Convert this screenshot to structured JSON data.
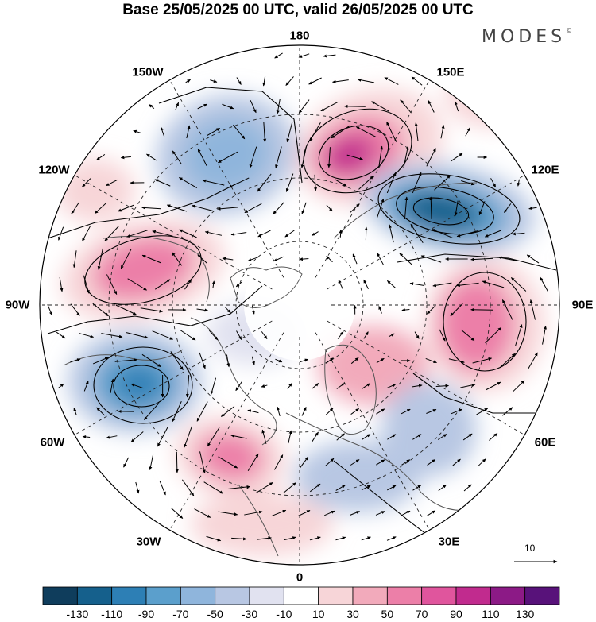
{
  "title": "Base 25/05/2025 00 UTC, valid 26/05/2025 00 UTC",
  "brand": "MODES",
  "brand_mark": "©",
  "longitude_labels": [
    "180",
    "150E",
    "120E",
    "90E",
    "60E",
    "30E",
    "0",
    "30W",
    "60W",
    "90W",
    "120W",
    "150W"
  ],
  "vector_scale_label": "10",
  "colorbar": {
    "tick_labels": [
      "-130",
      "-110",
      "-90",
      "-70",
      "-50",
      "-30",
      "-10",
      "10",
      "30",
      "50",
      "70",
      "90",
      "110",
      "130"
    ],
    "colors": [
      "#0f3d5c",
      "#15608c",
      "#2d7fb5",
      "#5b9fcc",
      "#8fb5dc",
      "#b8c7e3",
      "#e1e2f0",
      "#ffffff",
      "#f7d5d8",
      "#f2aabb",
      "#ec7fa8",
      "#e0559d",
      "#c12b8e",
      "#8c1a86",
      "#58127a"
    ]
  },
  "anomaly_centers": [
    {
      "name": "positive-anomaly-east-siberia",
      "sign": "positive",
      "level": 110
    },
    {
      "name": "negative-anomaly-east-asia",
      "sign": "negative",
      "level": -110
    },
    {
      "name": "positive-anomaly-central-asia",
      "sign": "positive",
      "level": 70
    },
    {
      "name": "negative-anomaly-pacific",
      "sign": "negative",
      "level": -50
    },
    {
      "name": "positive-anomaly-north-america",
      "sign": "positive",
      "level": 70
    },
    {
      "name": "negative-anomaly-atlantic",
      "sign": "negative",
      "level": -90
    },
    {
      "name": "positive-anomaly-north-atlantic",
      "sign": "positive",
      "level": 70
    }
  ]
}
